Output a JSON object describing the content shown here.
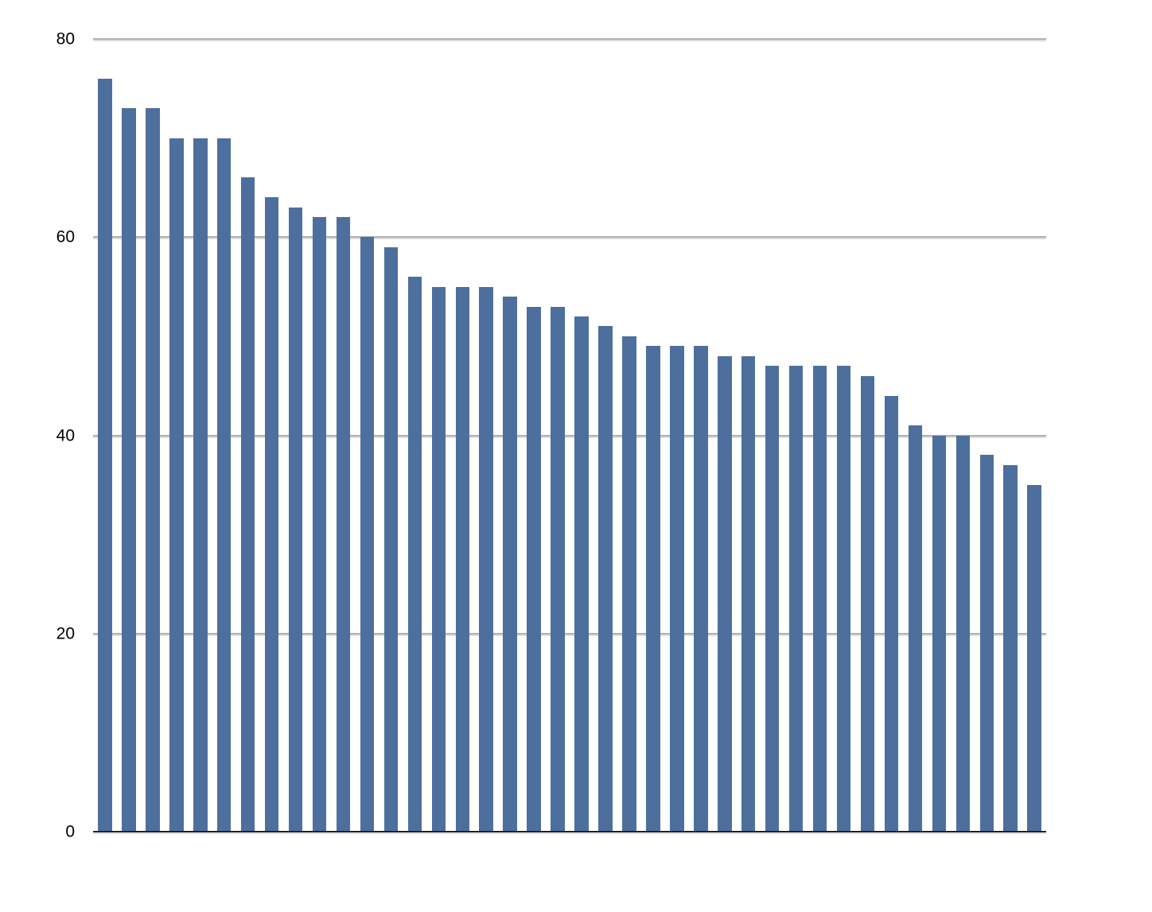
{
  "chart_data": {
    "type": "bar",
    "title": "",
    "xlabel": "",
    "ylabel": "",
    "values": [
      76,
      73,
      73,
      70,
      70,
      70,
      66,
      64,
      63,
      62,
      62,
      60,
      59,
      56,
      55,
      55,
      55,
      54,
      53,
      53,
      52,
      51,
      50,
      49,
      49,
      49,
      48,
      48,
      47,
      47,
      47,
      47,
      46,
      44,
      41,
      40,
      40,
      38,
      37,
      35
    ],
    "bar_count": 40,
    "ylim": [
      0,
      80
    ],
    "yticks": [
      80,
      60,
      40,
      20,
      0
    ],
    "yticks_labels": [
      "80",
      "60",
      "40",
      "20",
      "0"
    ],
    "x_tick_labels": "none",
    "legend": "none",
    "grid": "horizontal",
    "bar_color": "#4d6f9e",
    "gridline_color": "#b0b0b0",
    "axis_line_color": "#1f1f1f",
    "tick_label_color": "#000000",
    "background": "#ffffff"
  }
}
